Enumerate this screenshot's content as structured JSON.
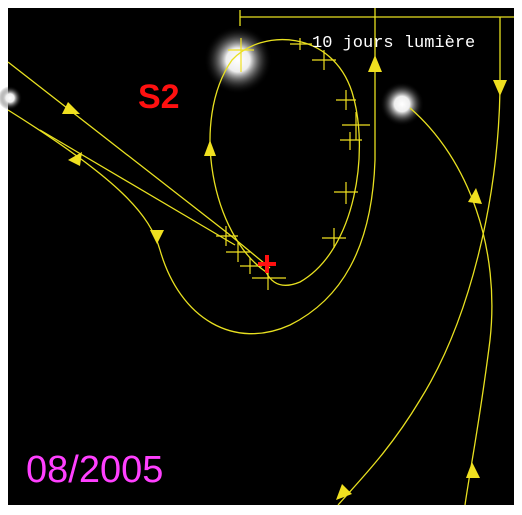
{
  "labels": {
    "star": "S2",
    "date": "08/2005",
    "scale": "10 jours lumière"
  }
}
